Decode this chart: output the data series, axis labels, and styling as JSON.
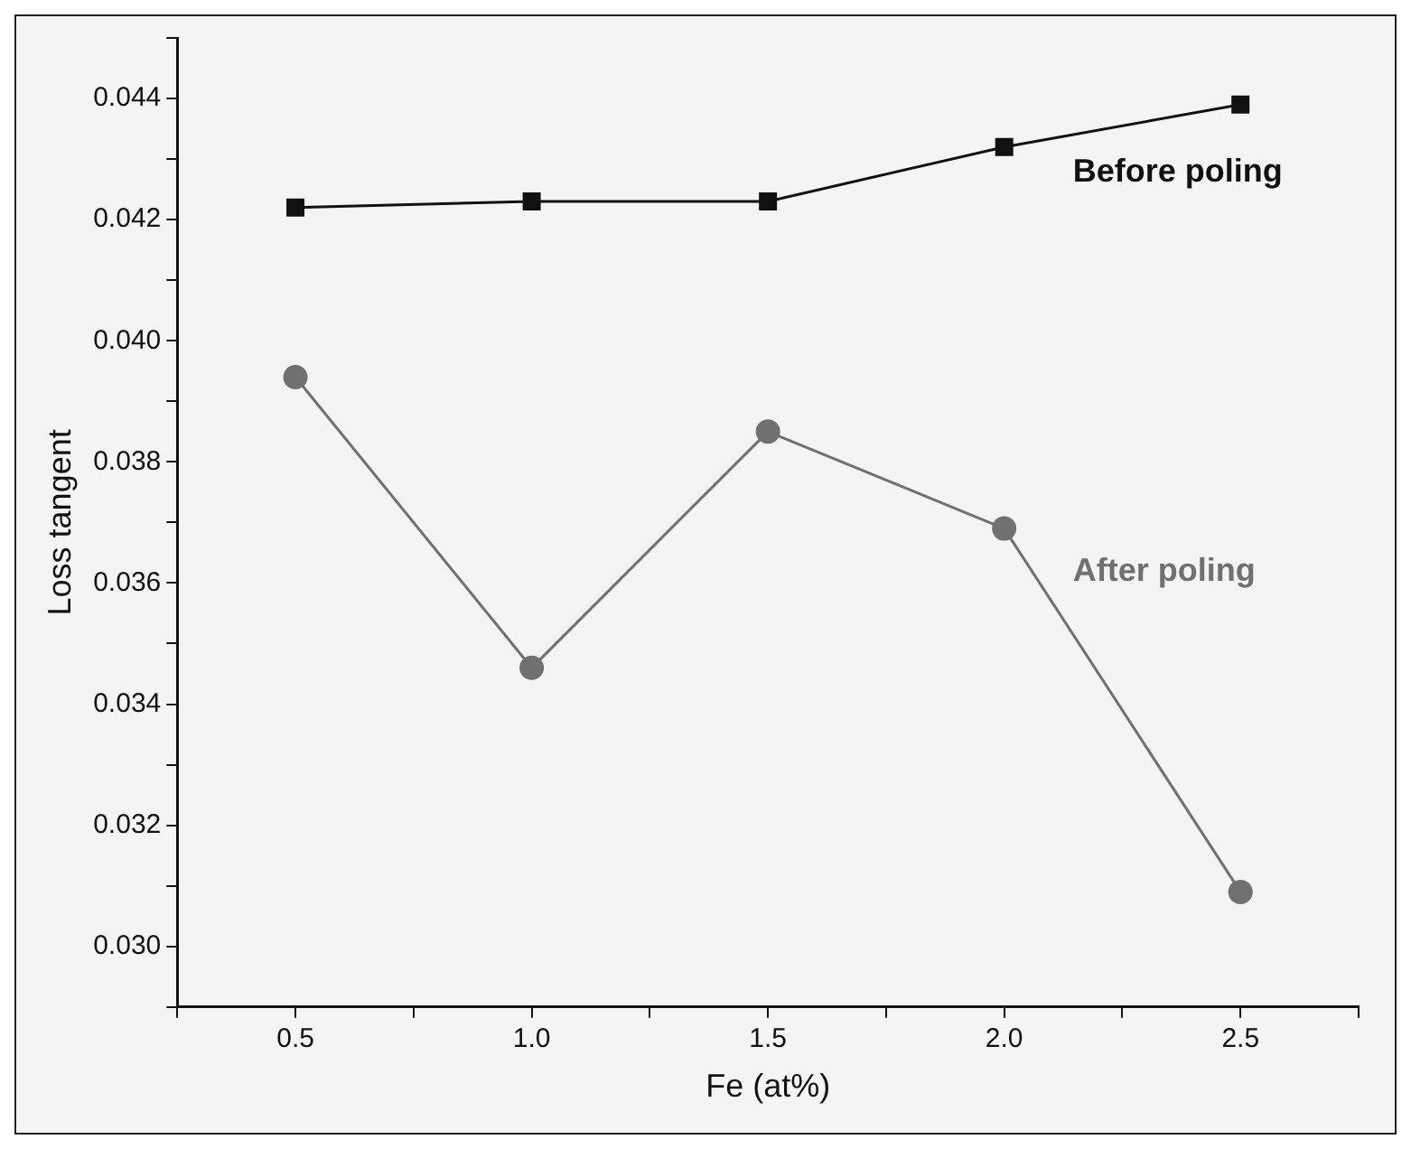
{
  "chart_data": {
    "type": "line",
    "xlabel": "Fe (at%)",
    "ylabel": "Loss tangent",
    "x": [
      0.5,
      1.0,
      1.5,
      2.0,
      2.5
    ],
    "series": [
      {
        "name": "Before poling",
        "color": "#111111",
        "marker": "square",
        "values": [
          0.0422,
          0.0423,
          0.0423,
          0.0432,
          0.0439
        ]
      },
      {
        "name": "After poling",
        "color": "#707070",
        "marker": "circle",
        "values": [
          0.0394,
          0.0346,
          0.0385,
          0.0369,
          0.0309
        ]
      }
    ],
    "xlim": [
      0.25,
      2.75
    ],
    "xticks": [
      {
        "value": 0.25,
        "label": null
      },
      {
        "value": 0.5,
        "label": "0.5"
      },
      {
        "value": 0.75,
        "label": null
      },
      {
        "value": 1.0,
        "label": "1.0"
      },
      {
        "value": 1.25,
        "label": null
      },
      {
        "value": 1.5,
        "label": "1.5"
      },
      {
        "value": 1.75,
        "label": null
      },
      {
        "value": 2.0,
        "label": "2.0"
      },
      {
        "value": 2.25,
        "label": null
      },
      {
        "value": 2.5,
        "label": "2.5"
      },
      {
        "value": 2.75,
        "label": null
      }
    ],
    "ylim": [
      0.029,
      0.045
    ],
    "yticks": [
      {
        "value": 0.029,
        "label": null
      },
      {
        "value": 0.03,
        "label": "0.030"
      },
      {
        "value": 0.031,
        "label": null
      },
      {
        "value": 0.032,
        "label": "0.032"
      },
      {
        "value": 0.033,
        "label": null
      },
      {
        "value": 0.034,
        "label": "0.034"
      },
      {
        "value": 0.035,
        "label": null
      },
      {
        "value": 0.036,
        "label": "0.036"
      },
      {
        "value": 0.037,
        "label": null
      },
      {
        "value": 0.038,
        "label": "0.038"
      },
      {
        "value": 0.039,
        "label": null
      },
      {
        "value": 0.04,
        "label": "0.040"
      },
      {
        "value": 0.041,
        "label": null
      },
      {
        "value": 0.042,
        "label": "0.042"
      },
      {
        "value": 0.043,
        "label": null
      },
      {
        "value": 0.044,
        "label": "0.044"
      },
      {
        "value": 0.045,
        "label": null
      }
    ],
    "legend": false
  }
}
